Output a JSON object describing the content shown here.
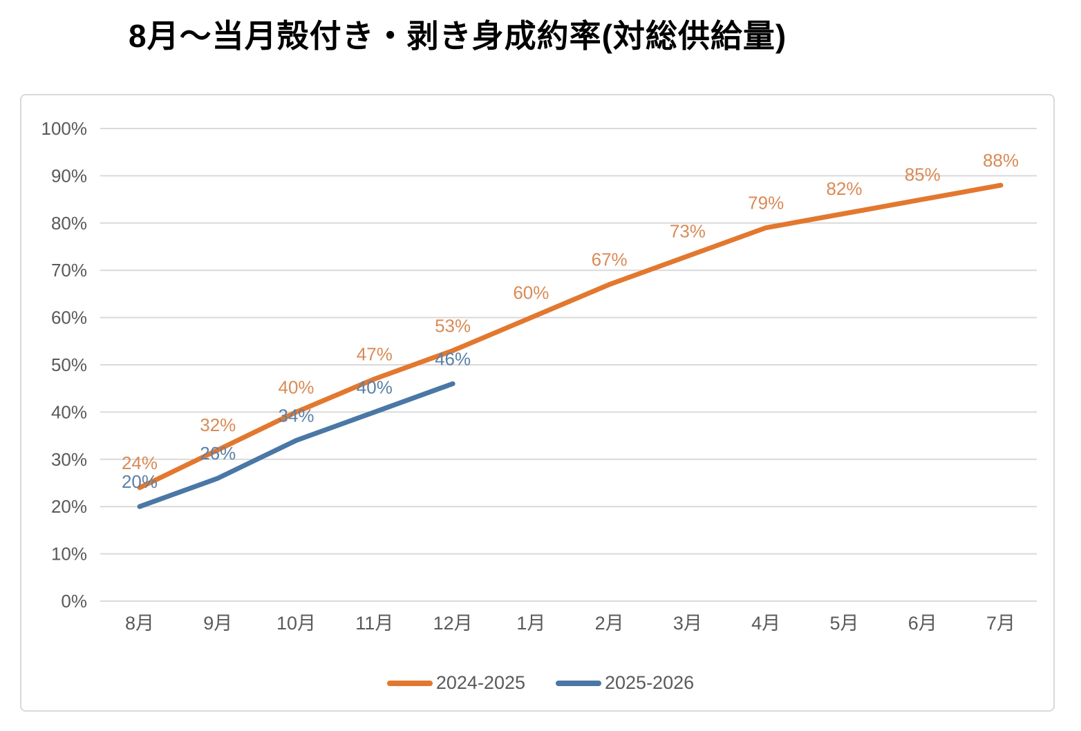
{
  "title": "8月〜当月殻付き・剥き身成約率(対総供給量)",
  "chart_data": {
    "type": "line",
    "title": "8月〜当月殻付き・剥き身成約率(対総供給量)",
    "categories": [
      "8月",
      "9月",
      "10月",
      "11月",
      "12月",
      "1月",
      "2月",
      "3月",
      "4月",
      "5月",
      "6月",
      "7月"
    ],
    "series": [
      {
        "name": "2024-2025",
        "color": "#e2782f",
        "label_color": "#d98a55",
        "values": [
          24,
          32,
          40,
          47,
          53,
          60,
          67,
          73,
          79,
          82,
          85,
          88
        ]
      },
      {
        "name": "2025-2026",
        "color": "#4a77a5",
        "label_color": "#5b80a8",
        "values": [
          20,
          26,
          34,
          40,
          46
        ]
      }
    ],
    "yticks": [
      "0%",
      "10%",
      "20%",
      "30%",
      "40%",
      "50%",
      "60%",
      "70%",
      "80%",
      "90%",
      "100%"
    ],
    "ylim": [
      0,
      100
    ],
    "xlabel": "",
    "ylabel": "",
    "grid": true,
    "data_labels": "percent",
    "legend_position": "bottom"
  },
  "colors": {
    "grid": "#d9d9d9",
    "frame_border": "#d9d9d9",
    "axis_text": "#595959",
    "title_text": "#000000",
    "background": "#ffffff"
  }
}
